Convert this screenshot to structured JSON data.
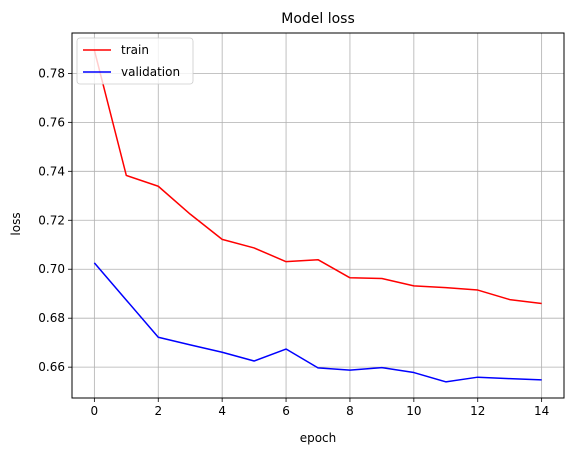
{
  "chart_data": {
    "type": "line",
    "title": "Model loss",
    "xlabel": "epoch",
    "ylabel": "loss",
    "xlim": [
      -0.7,
      14.7
    ],
    "ylim": [
      0.6474,
      0.7965
    ],
    "xticks": [
      0,
      2,
      4,
      6,
      8,
      10,
      12,
      14
    ],
    "xtick_labels": [
      "0",
      "2",
      "4",
      "6",
      "8",
      "10",
      "12",
      "14"
    ],
    "yticks": [
      0.66,
      0.68,
      0.7,
      0.72,
      0.74,
      0.76,
      0.78
    ],
    "ytick_labels": [
      "0.66",
      "0.68",
      "0.70",
      "0.72",
      "0.74",
      "0.76",
      "0.78"
    ],
    "grid": true,
    "legend_position": "top-left",
    "x": [
      0,
      1,
      2,
      3,
      4,
      5,
      6,
      7,
      8,
      9,
      10,
      11,
      12,
      13,
      14
    ],
    "series": [
      {
        "name": "train",
        "color": "#ff0000",
        "values": [
          0.7895,
          0.7383,
          0.7339,
          0.7225,
          0.7122,
          0.7087,
          0.7031,
          0.7039,
          0.6965,
          0.6962,
          0.6932,
          0.6925,
          0.6915,
          0.6876,
          0.686
        ]
      },
      {
        "name": "validation",
        "color": "#0000ff",
        "values": [
          0.7026,
          0.6874,
          0.6722,
          0.6691,
          0.6661,
          0.6625,
          0.6674,
          0.6597,
          0.6588,
          0.6598,
          0.6578,
          0.654,
          0.6559,
          0.6553,
          0.6548
        ]
      }
    ]
  }
}
